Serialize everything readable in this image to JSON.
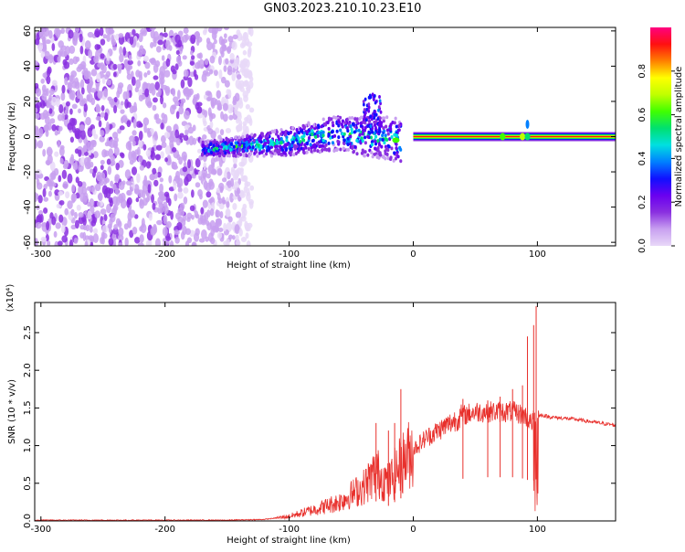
{
  "title": "GN03.2023.210.10.23.E10",
  "chart_data": [
    {
      "type": "heatmap",
      "xlabel": "Height of straight line (km)",
      "ylabel": "Frequency (Hz)",
      "xlim": [
        -305,
        163
      ],
      "ylim": [
        -62,
        62
      ],
      "xticks": [
        -300,
        -200,
        -100,
        0,
        100
      ],
      "yticks": [
        -60,
        -40,
        -20,
        0,
        20,
        40,
        60
      ],
      "colorbar": {
        "label": "Normalized spectral amplitude",
        "range": [
          0,
          1
        ],
        "ticks": [
          0.0,
          0.2,
          0.4,
          0.6,
          0.8
        ],
        "colormap": [
          "#e8d8f8",
          "#c8a0f0",
          "#8a30e0",
          "#6a00f0",
          "#1010ff",
          "#0080ff",
          "#00e0e0",
          "#00e070",
          "#40ff00",
          "#c0ff00",
          "#ffff00",
          "#ff8000",
          "#ff1010",
          "#ff0080"
        ]
      },
      "regions": [
        {
          "name": "noise",
          "x_range": [
            -305,
            -130
          ],
          "freq_range": [
            -62,
            62
          ],
          "amplitude": 0.1
        },
        {
          "name": "onset",
          "x_range": [
            -170,
            -10
          ],
          "center_freq": [
            [
              -170,
              -7
            ],
            [
              -130,
              -5
            ],
            [
              -100,
              -3
            ],
            [
              -80,
              0
            ],
            [
              -60,
              2
            ],
            [
              -40,
              0
            ],
            [
              -20,
              -1
            ],
            [
              -10,
              -2
            ]
          ],
          "amplitude": 0.45
        },
        {
          "name": "tone",
          "x_range": [
            0,
            163
          ],
          "center_freq": 0,
          "amplitude": 0.85
        }
      ]
    },
    {
      "type": "line",
      "xlabel": "Height of straight line (km)",
      "ylabel": "SNR (10 * v/v)",
      "ymultiplier": "(x10⁴)",
      "xlim": [
        -305,
        163
      ],
      "ylim": [
        0,
        2.9
      ],
      "xticks": [
        -300,
        -200,
        -100,
        0,
        100
      ],
      "yticks": [
        0.0,
        0.5,
        1.0,
        1.5,
        2.0,
        2.5
      ],
      "color": "#e8302c",
      "series": [
        {
          "name": "",
          "x": [
            -305,
            -250,
            -200,
            -150,
            -120,
            -100,
            -80,
            -60,
            -40,
            -30,
            -20,
            -10,
            0,
            10,
            20,
            30,
            40,
            50,
            60,
            70,
            80,
            90,
            95,
            100,
            105,
            110,
            130,
            150,
            163
          ],
          "y": [
            0.01,
            0.01,
            0.01,
            0.01,
            0.02,
            0.06,
            0.15,
            0.25,
            0.45,
            0.65,
            0.5,
            0.75,
            0.95,
            1.1,
            1.2,
            1.3,
            1.4,
            1.45,
            1.45,
            1.45,
            1.45,
            1.4,
            1.3,
            1.4,
            1.4,
            1.38,
            1.35,
            1.3,
            1.27
          ]
        }
      ],
      "spikes": [
        {
          "x": -30,
          "y": 1.3
        },
        {
          "x": -20,
          "y": 1.2
        },
        {
          "x": -15,
          "y": 1.3
        },
        {
          "x": -10,
          "y": 1.75
        },
        {
          "x": 40,
          "y": 1.62
        },
        {
          "x": 60,
          "y": 1.6
        },
        {
          "x": 70,
          "y": 1.65
        },
        {
          "x": 80,
          "y": 1.75
        },
        {
          "x": 88,
          "y": 1.8
        },
        {
          "x": 92,
          "y": 2.45
        },
        {
          "x": 97,
          "y": 2.6
        },
        {
          "x": 99,
          "y": 2.85
        }
      ]
    }
  ]
}
